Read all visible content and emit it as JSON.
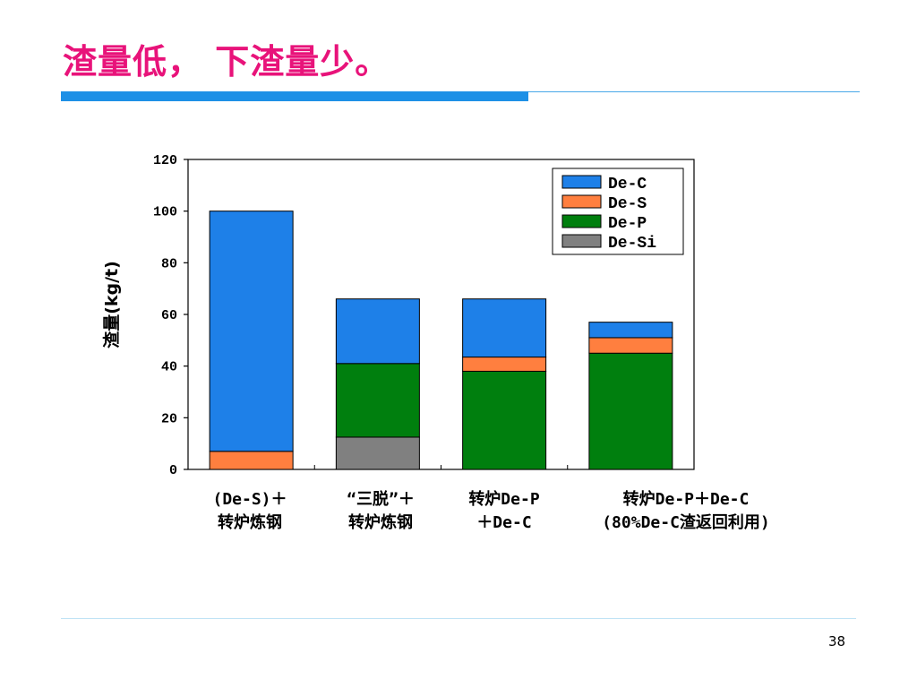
{
  "slide": {
    "title": "渣量低， 下渣量少。",
    "page_number": "38"
  },
  "chart_data": {
    "type": "bar",
    "stacked": true,
    "ylabel": "渣量(kg/t)",
    "ylim": [
      0,
      120
    ],
    "yticks": [
      "0",
      "20",
      "40",
      "60",
      "80",
      "100",
      "120"
    ],
    "grid": false,
    "legend_position": "top-right",
    "categories": [
      [
        "(De-S)＋",
        "转炉炼钢"
      ],
      [
        "“三脱”＋",
        "转炉炼钢"
      ],
      [
        "转炉De-P",
        "＋De-C"
      ],
      [
        "转炉De-P＋De-C",
        "(80%De-C渣返回利用)"
      ]
    ],
    "series": [
      {
        "name": "De-Si",
        "color": "#808080",
        "values": [
          0,
          12.5,
          0,
          0
        ]
      },
      {
        "name": "De-P",
        "color": "#007f0e",
        "values": [
          0,
          28.5,
          38,
          45
        ]
      },
      {
        "name": "De-S",
        "color": "#ff7f3f",
        "values": [
          7,
          0,
          5.5,
          6
        ]
      },
      {
        "name": "De-C",
        "color": "#1e80e8",
        "values": [
          93,
          25,
          22.5,
          6
        ]
      }
    ],
    "legend_order": [
      "De-C",
      "De-S",
      "De-P",
      "De-Si"
    ]
  }
}
